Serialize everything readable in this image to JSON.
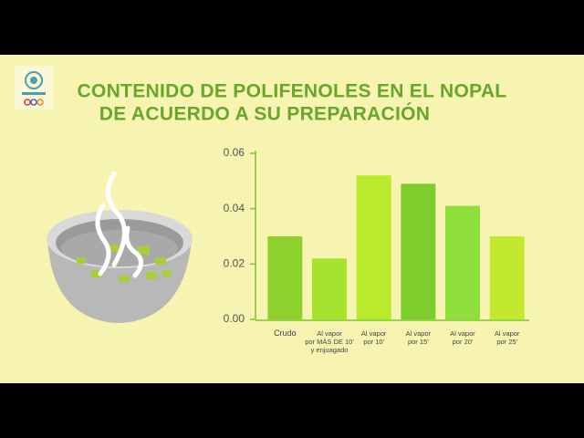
{
  "chart_data": {
    "type": "bar",
    "title": [
      "CONTENIDO DE POLIFENOLES EN EL NOPAL",
      "DE ACUERDO A SU PREPARACIÓN"
    ],
    "categories": [
      [
        "Crudo"
      ],
      [
        "Al vapor",
        "por MÁS DE 10'",
        "y enjuagado"
      ],
      [
        "Al vapor",
        "por 10'"
      ],
      [
        "Al vapor",
        "por 15'"
      ],
      [
        "Al vapor",
        "por 20'"
      ],
      [
        "Al vapor",
        "por 25'"
      ]
    ],
    "values": [
      0.03,
      0.022,
      0.052,
      0.049,
      0.041,
      0.03
    ],
    "colors": [
      "#8fd12c",
      "#a6e22e",
      "#b9ea2c",
      "#7dce2c",
      "#8fdf3c",
      "#c2e92e"
    ],
    "ylim": [
      0,
      0.06
    ],
    "yticks": [
      {
        "value": 0,
        "label": "0.00"
      },
      0.02,
      0.04,
      0.06
    ],
    "grid": false
  }
}
